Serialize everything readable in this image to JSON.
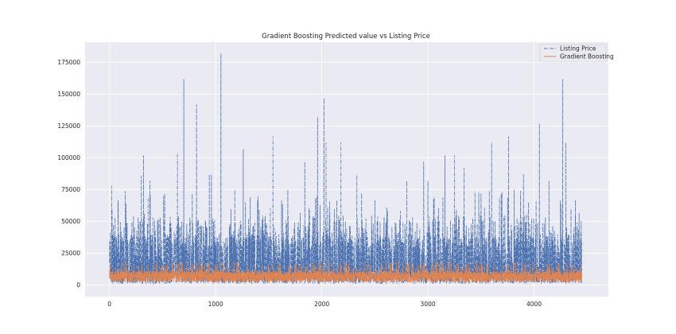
{
  "chart_data": {
    "type": "line",
    "title": "Gradient Boosting Predicted value vs Listing Price",
    "xlabel": "",
    "ylabel": "",
    "n_points": 4450,
    "xlim": [
      -230,
      4700
    ],
    "ylim": [
      -9000,
      191000
    ],
    "x_ticks": [
      0,
      1000,
      2000,
      3000,
      4000
    ],
    "y_ticks": [
      0,
      25000,
      50000,
      75000,
      100000,
      125000,
      150000,
      175000
    ],
    "grid": true,
    "legend_position": "top-right",
    "series": [
      {
        "name": "Listing Price",
        "color": "#4c72b0",
        "style": "dash-dot",
        "typical_range": [
          1000,
          40000
        ],
        "peaks": [
          [
            20,
            78000
          ],
          [
            80,
            67000
          ],
          [
            300,
            86000
          ],
          [
            320,
            102000
          ],
          [
            380,
            82000
          ],
          [
            520,
            72000
          ],
          [
            640,
            104000
          ],
          [
            700,
            162000
          ],
          [
            780,
            72000
          ],
          [
            820,
            142000
          ],
          [
            940,
            87000
          ],
          [
            960,
            87000
          ],
          [
            1050,
            182000
          ],
          [
            1180,
            75000
          ],
          [
            1260,
            107000
          ],
          [
            1400,
            70000
          ],
          [
            1540,
            117000
          ],
          [
            1680,
            75000
          ],
          [
            1840,
            97000
          ],
          [
            1960,
            132000
          ],
          [
            2020,
            147000
          ],
          [
            2040,
            112000
          ],
          [
            2180,
            112000
          ],
          [
            2330,
            87000
          ],
          [
            2500,
            67000
          ],
          [
            2800,
            82000
          ],
          [
            2960,
            97000
          ],
          [
            3000,
            82000
          ],
          [
            3160,
            102000
          ],
          [
            3250,
            102000
          ],
          [
            3340,
            92000
          ],
          [
            3500,
            72000
          ],
          [
            3600,
            112000
          ],
          [
            3690,
            72000
          ],
          [
            3760,
            117000
          ],
          [
            3900,
            87000
          ],
          [
            4050,
            127000
          ],
          [
            4140,
            82000
          ],
          [
            4270,
            162000
          ],
          [
            4300,
            112000
          ],
          [
            4390,
            67000
          ],
          [
            4440,
            42000
          ]
        ]
      },
      {
        "name": "Gradient Boosting",
        "color": "#dd8452",
        "style": "solid",
        "typical_range": [
          2000,
          15000
        ],
        "mean": 7000
      }
    ]
  }
}
